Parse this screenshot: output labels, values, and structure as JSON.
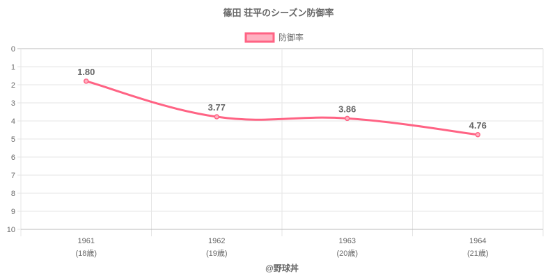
{
  "chart_data": {
    "type": "line",
    "title": "篠田 荘平のシーズン防御率",
    "categories": [
      "1961",
      "1962",
      "1963",
      "1964"
    ],
    "category_sublabels": [
      "(18歳)",
      "(19歳)",
      "(20歳)",
      "(21歳)"
    ],
    "series": [
      {
        "name": "防御率",
        "values": [
          1.8,
          3.77,
          3.86,
          4.76
        ],
        "data_labels": [
          "1.80",
          "3.77",
          "3.86",
          "4.76"
        ]
      }
    ],
    "ylim": [
      0,
      10
    ],
    "y_reversed": true,
    "y_ticks": [
      "0",
      "1",
      "2",
      "3",
      "4",
      "5",
      "6",
      "7",
      "8",
      "9",
      "10"
    ],
    "grid": true,
    "legend": "top",
    "line_color": "#ff6384",
    "fill_color": "#ffb1c1",
    "footer": "@野球丼"
  }
}
